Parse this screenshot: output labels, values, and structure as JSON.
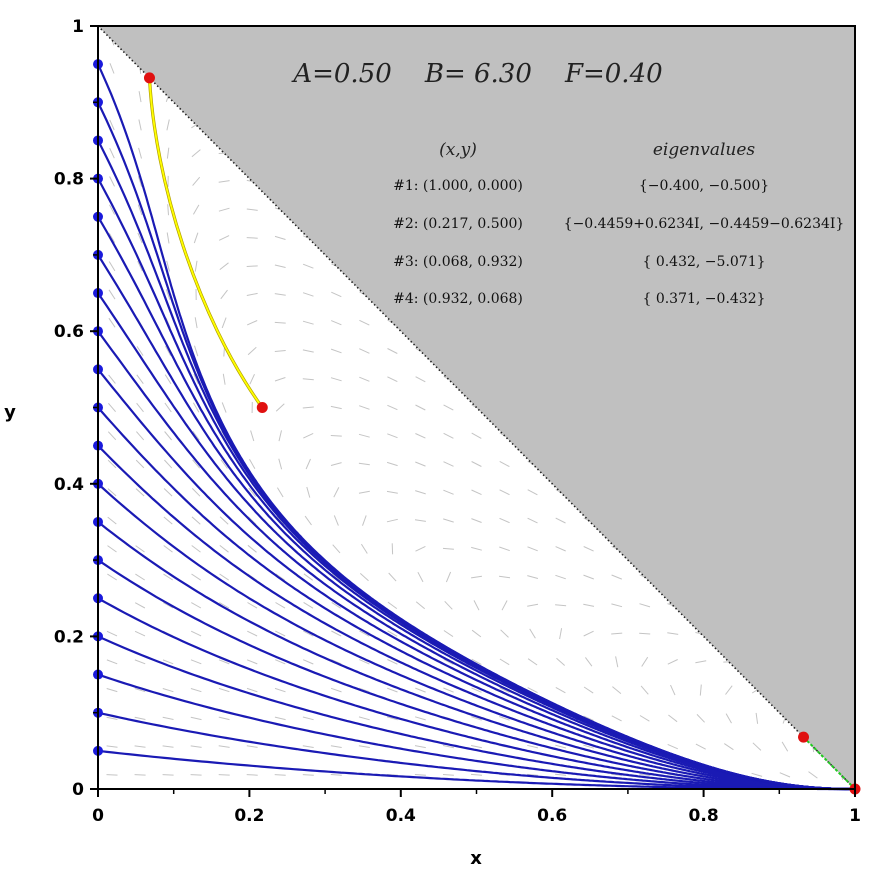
{
  "chart_data": {
    "type": "line",
    "title": "",
    "params": {
      "A": 0.5,
      "B": 6.3,
      "F": 0.4
    },
    "params_text": "A=0.50    B= 6.30    F=0.40",
    "xlabel": "x",
    "ylabel": "y",
    "xlim": [
      0,
      1
    ],
    "ylim": [
      0,
      1
    ],
    "x_ticks": [
      0,
      0.2,
      0.4,
      0.6,
      0.8,
      1
    ],
    "x_tick_labels": [
      "0",
      "0.2",
      "0.4",
      "0.6",
      "0.8",
      "1"
    ],
    "y_ticks": [
      0,
      0.2,
      0.4,
      0.6,
      0.8,
      1
    ],
    "y_tick_labels": [
      "0",
      "0.2",
      "0.4",
      "0.6",
      "0.8",
      "1"
    ],
    "shaded_region": "x + y > 1",
    "boundary_line": {
      "from": [
        0,
        1
      ],
      "to": [
        1,
        0
      ],
      "style": "dotted"
    },
    "trajectory_start_points": {
      "x": 0,
      "y": [
        0.05,
        0.1,
        0.15,
        0.2,
        0.25,
        0.3,
        0.35,
        0.4,
        0.45,
        0.5,
        0.55,
        0.6,
        0.65,
        0.7,
        0.75,
        0.8,
        0.85,
        0.9,
        0.95
      ]
    },
    "equilibria": [
      {
        "label": "#1",
        "x": 1.0,
        "y": 0.0
      },
      {
        "label": "#2",
        "x": 0.217,
        "y": 0.5
      },
      {
        "label": "#3",
        "x": 0.068,
        "y": 0.932
      },
      {
        "label": "#4",
        "x": 0.932,
        "y": 0.068
      }
    ],
    "manifolds": [
      {
        "from": "#3",
        "to": "#2",
        "color": "#ffff00"
      },
      {
        "from": "#4",
        "to": "#1",
        "color": "#22cc22"
      }
    ],
    "table": {
      "header_xy": "(x,y)",
      "header_eig": "eigenvalues",
      "rows": [
        {
          "point": "#1: (1.000, 0.000)",
          "eigenvalues": "{−0.400, −0.500}"
        },
        {
          "point": "#2: (0.217, 0.500)",
          "eigenvalues": "{−0.4459+0.6234I, −0.4459−0.6234I}"
        },
        {
          "point": "#3: (0.068, 0.932)",
          "eigenvalues": "{ 0.432, −5.071}"
        },
        {
          "point": "#4: (0.932, 0.068)",
          "eigenvalues": "{ 0.371, −0.432}"
        }
      ]
    },
    "grid": false,
    "colors": {
      "trajectory": "#1a1ab4",
      "start_point": "#1a1adc",
      "equilibrium": "#e01010",
      "shaded": "#c0c0c0",
      "field_arrows": "#c4c4c4"
    }
  }
}
